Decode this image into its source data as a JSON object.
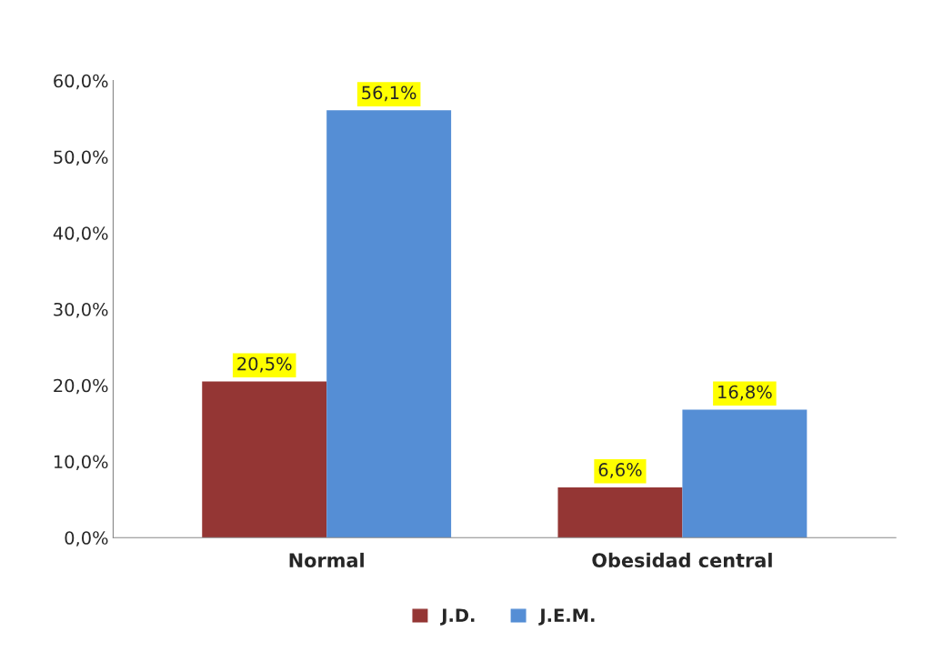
{
  "chart_data": {
    "type": "bar",
    "categories": [
      "Normal",
      "Obesidad central"
    ],
    "series": [
      {
        "name": "J.D.",
        "color": "#943634",
        "values": [
          20.5,
          6.6
        ],
        "value_labels": [
          "20,5%",
          "6,6%"
        ]
      },
      {
        "name": "J.E.M.",
        "color": "#558ed5",
        "values": [
          56.1,
          16.8
        ],
        "value_labels": [
          "56,1%",
          "16,8%"
        ]
      }
    ],
    "ylim": [
      0,
      60
    ],
    "yticks": [
      {
        "value": 0,
        "label": "0,0%"
      },
      {
        "value": 10,
        "label": "10,0%"
      },
      {
        "value": 20,
        "label": "20,0%"
      },
      {
        "value": 30,
        "label": "30,0%"
      },
      {
        "value": 40,
        "label": "40,0%"
      },
      {
        "value": 50,
        "label": "50,0%"
      },
      {
        "value": 60,
        "label": "60,0%"
      }
    ],
    "grid": false,
    "legend": "bottom"
  }
}
